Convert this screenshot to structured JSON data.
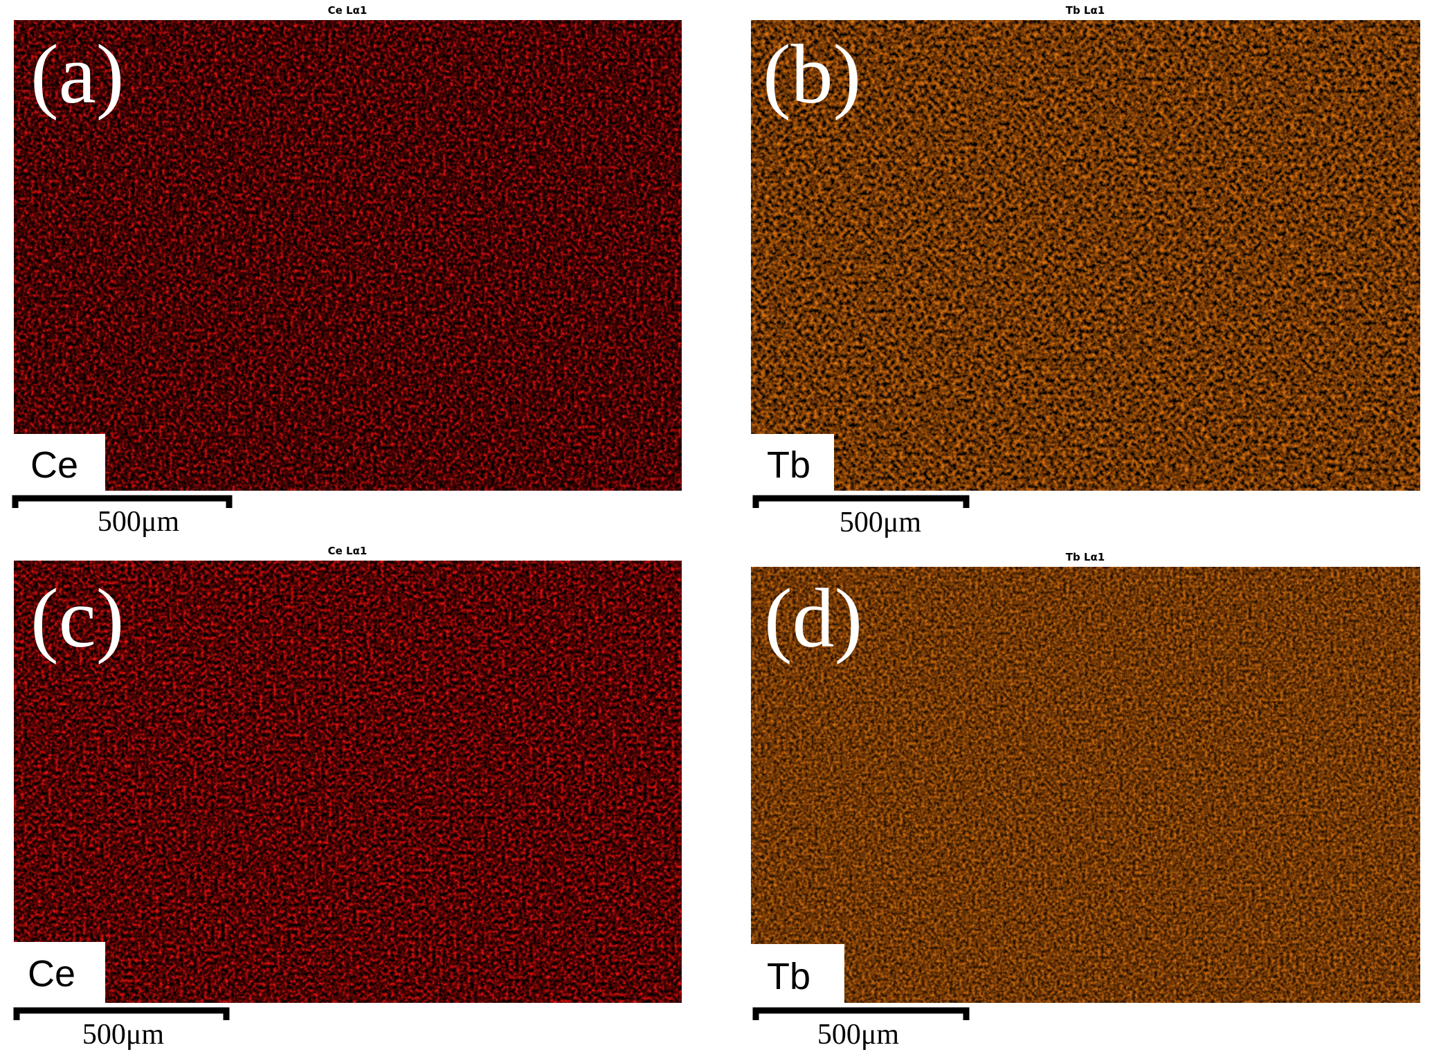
{
  "panels": [
    {
      "label": "(a)",
      "title": "Ce Lα1",
      "element": "Ce",
      "scale_bar": "500μm"
    },
    {
      "label": "(b)",
      "title": "Tb Lα1",
      "element": "Tb",
      "scale_bar": "500μm"
    },
    {
      "label": "(c)",
      "title": "Ce Lα1",
      "element": "Ce",
      "scale_bar": "500μm"
    },
    {
      "label": "(d)",
      "title": "Tb Lα1",
      "element": "Tb",
      "scale_bar": "500μm"
    }
  ]
}
